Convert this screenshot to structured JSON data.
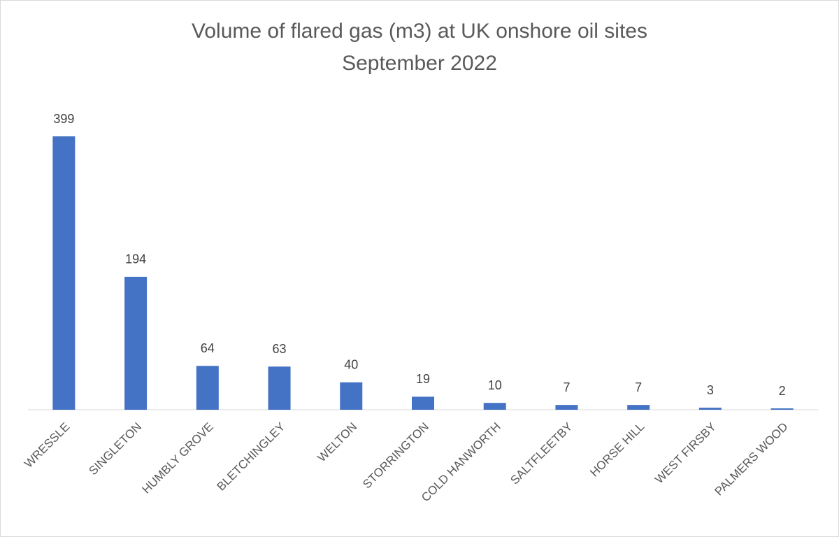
{
  "chart_data": {
    "type": "bar",
    "title": "Volume of flared gas (m3) at UK onshore oil sites",
    "subtitle": "September 2022",
    "categories": [
      "WRESSLE",
      "SINGLETON",
      "HUMBLY GROVE",
      "BLETCHINGLEY",
      "WELTON",
      "STORRINGTON",
      "COLD HANWORTH",
      "SALTFLEETBY",
      "HORSE HILL",
      "WEST FIRSBY",
      "PALMERS WOOD"
    ],
    "values": [
      399,
      194,
      64,
      63,
      40,
      19,
      10,
      7,
      7,
      3,
      2
    ],
    "color": "#4472c4"
  }
}
